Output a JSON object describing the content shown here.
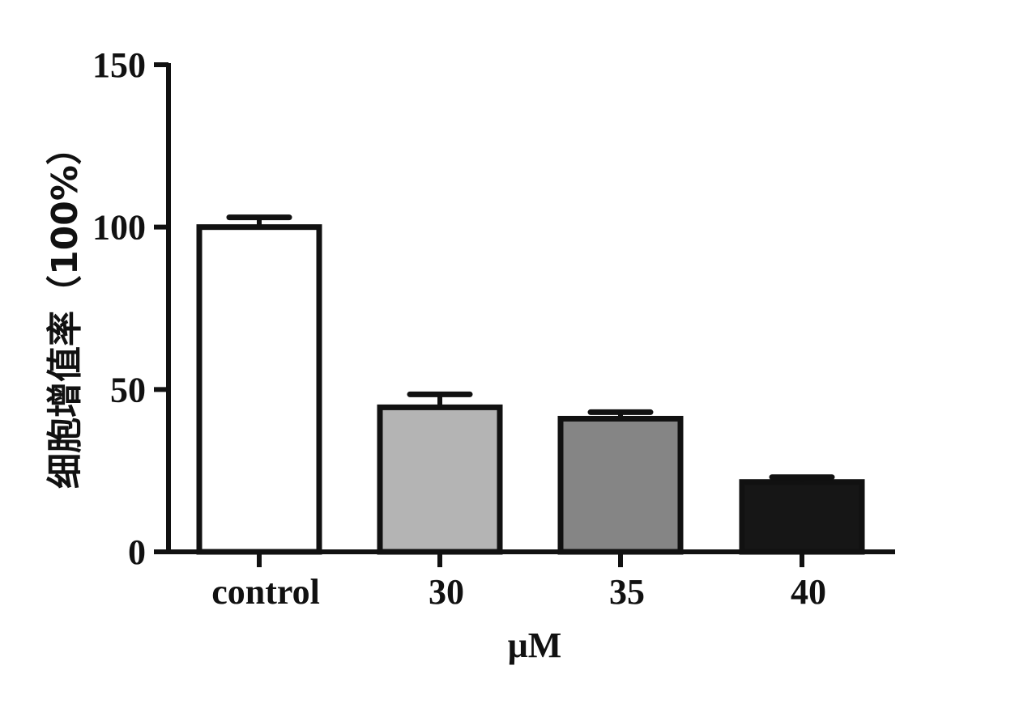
{
  "chart_data": {
    "type": "bar",
    "categories": [
      "control",
      "30",
      "35",
      "40"
    ],
    "values": [
      100,
      44.5,
      41,
      21.5
    ],
    "errors": [
      3,
      4,
      2,
      1.5
    ],
    "bar_colors": [
      "#ffffff",
      "#b4b4b4",
      "#858585",
      "#161616"
    ],
    "title": "",
    "xlabel": "μM",
    "ylabel": "细胞增值率（100%）",
    "ylim": [
      0,
      150
    ],
    "yticks": [
      0,
      50,
      100,
      150
    ],
    "ytick_labels": [
      "0",
      "50",
      "100",
      "150"
    ],
    "grid": false
  },
  "colors": {
    "axis": "#111111",
    "text": "#111111"
  }
}
